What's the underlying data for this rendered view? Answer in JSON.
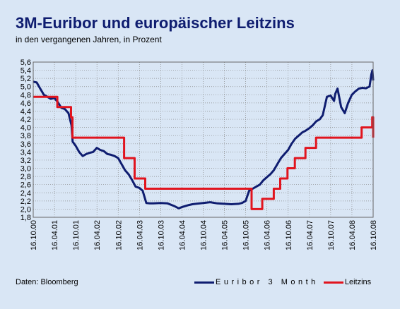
{
  "header": {
    "title": "3M-Euribor und europäischer Leitzins",
    "subtitle": "in den vergangenen Jahren, in Prozent"
  },
  "footer": {
    "source": "Daten: Bloomberg"
  },
  "colors": {
    "background": "#d9e6f5",
    "euribor": "#0f1d70",
    "leitzins": "#e1141e",
    "grid": "#888888",
    "title": "#0f1d70"
  },
  "chart_data": {
    "type": "line",
    "xlim": [
      "2000-10-16",
      "2008-10-16"
    ],
    "ylim": [
      1.8,
      5.6
    ],
    "ytick_step": 0.2,
    "grid": true,
    "legend_position": "bottom-right",
    "x_ticks": [
      "16.10.00",
      "16.04.01",
      "16.10.01",
      "16.04.02",
      "16.10.02",
      "16.04.03",
      "16.10.03",
      "16.04.04",
      "16.10.04",
      "16.04.05",
      "16.10.05",
      "16.04.06",
      "16.10.06",
      "16.04.07",
      "16.10.07",
      "16.04.08",
      "16.10.08"
    ],
    "y_ticks": [
      "1,8",
      "2,0",
      "2,2",
      "2,4",
      "2,6",
      "2,8",
      "3,0",
      "3,2",
      "3,4",
      "3,6",
      "3,8",
      "4,0",
      "4,2",
      "4,4",
      "4,6",
      "4,8",
      "5,0",
      "5,2",
      "5,4",
      "5,6"
    ],
    "series": [
      {
        "name": "Euribor 3 Month",
        "color": "#0f1d70",
        "step": false,
        "x": [
          "2000-10-16",
          "2000-11-15",
          "2000-12-15",
          "2001-01-15",
          "2001-02-15",
          "2001-03-15",
          "2001-04-16",
          "2001-05-15",
          "2001-06-15",
          "2001-07-15",
          "2001-08-15",
          "2001-09-10",
          "2001-09-20",
          "2001-10-16",
          "2001-11-15",
          "2001-12-15",
          "2002-01-15",
          "2002-02-15",
          "2002-03-15",
          "2002-04-16",
          "2002-05-15",
          "2002-06-15",
          "2002-07-15",
          "2002-08-15",
          "2002-09-15",
          "2002-10-16",
          "2002-11-15",
          "2002-12-15",
          "2003-01-15",
          "2003-02-15",
          "2003-03-15",
          "2003-04-16",
          "2003-05-15",
          "2003-06-15",
          "2003-07-15",
          "2003-08-15",
          "2003-10-16",
          "2003-12-15",
          "2004-02-15",
          "2004-03-20",
          "2004-04-16",
          "2004-06-15",
          "2004-07-15",
          "2004-08-15",
          "2004-10-16",
          "2004-12-15",
          "2005-02-15",
          "2005-04-16",
          "2005-06-15",
          "2005-08-15",
          "2005-09-15",
          "2005-10-16",
          "2005-11-15",
          "2005-12-15",
          "2006-01-15",
          "2006-02-15",
          "2006-03-15",
          "2006-04-16",
          "2006-05-15",
          "2006-06-15",
          "2006-07-15",
          "2006-08-15",
          "2006-09-15",
          "2006-10-16",
          "2006-11-15",
          "2006-12-15",
          "2007-01-15",
          "2007-02-15",
          "2007-03-15",
          "2007-04-16",
          "2007-05-15",
          "2007-06-15",
          "2007-07-15",
          "2007-08-10",
          "2007-09-15",
          "2007-10-16",
          "2007-11-15",
          "2007-11-25",
          "2007-12-15",
          "2008-01-15",
          "2008-02-15",
          "2008-03-15",
          "2008-04-16",
          "2008-05-15",
          "2008-06-15",
          "2008-07-15",
          "2008-08-15",
          "2008-09-15",
          "2008-10-01",
          "2008-10-10",
          "2008-10-16"
        ],
        "values": [
          5.12,
          5.1,
          4.95,
          4.8,
          4.75,
          4.7,
          4.72,
          4.62,
          4.48,
          4.45,
          4.35,
          4.05,
          3.65,
          3.55,
          3.4,
          3.3,
          3.35,
          3.38,
          3.4,
          3.5,
          3.45,
          3.42,
          3.35,
          3.33,
          3.3,
          3.25,
          3.1,
          2.95,
          2.85,
          2.7,
          2.55,
          2.52,
          2.45,
          2.15,
          2.14,
          2.14,
          2.15,
          2.14,
          2.07,
          2.02,
          2.05,
          2.1,
          2.12,
          2.13,
          2.15,
          2.17,
          2.14,
          2.13,
          2.12,
          2.13,
          2.15,
          2.2,
          2.45,
          2.5,
          2.55,
          2.6,
          2.7,
          2.78,
          2.85,
          2.95,
          3.1,
          3.25,
          3.35,
          3.45,
          3.6,
          3.72,
          3.8,
          3.88,
          3.92,
          3.98,
          4.05,
          4.15,
          4.2,
          4.3,
          4.75,
          4.78,
          4.65,
          4.82,
          4.95,
          4.5,
          4.35,
          4.6,
          4.8,
          4.88,
          4.95,
          4.97,
          4.96,
          5.0,
          5.3,
          5.4,
          5.15
        ]
      },
      {
        "name": "Leitzins",
        "color": "#e1141e",
        "step": true,
        "x": [
          "2000-10-16",
          "2001-05-11",
          "2001-09-06",
          "2001-09-18",
          "2002-12-06",
          "2003-03-07",
          "2003-06-06",
          "2005-12-06",
          "2006-03-08",
          "2006-06-15",
          "2006-08-09",
          "2006-10-11",
          "2006-12-13",
          "2007-03-14",
          "2007-06-13",
          "2008-07-09",
          "2008-10-08",
          "2008-10-16"
        ],
        "values": [
          4.75,
          4.5,
          4.25,
          3.75,
          3.25,
          2.75,
          2.5,
          2.0,
          2.25,
          2.5,
          2.75,
          3.0,
          3.25,
          3.5,
          3.75,
          4.0,
          4.25,
          3.75
        ]
      }
    ]
  }
}
